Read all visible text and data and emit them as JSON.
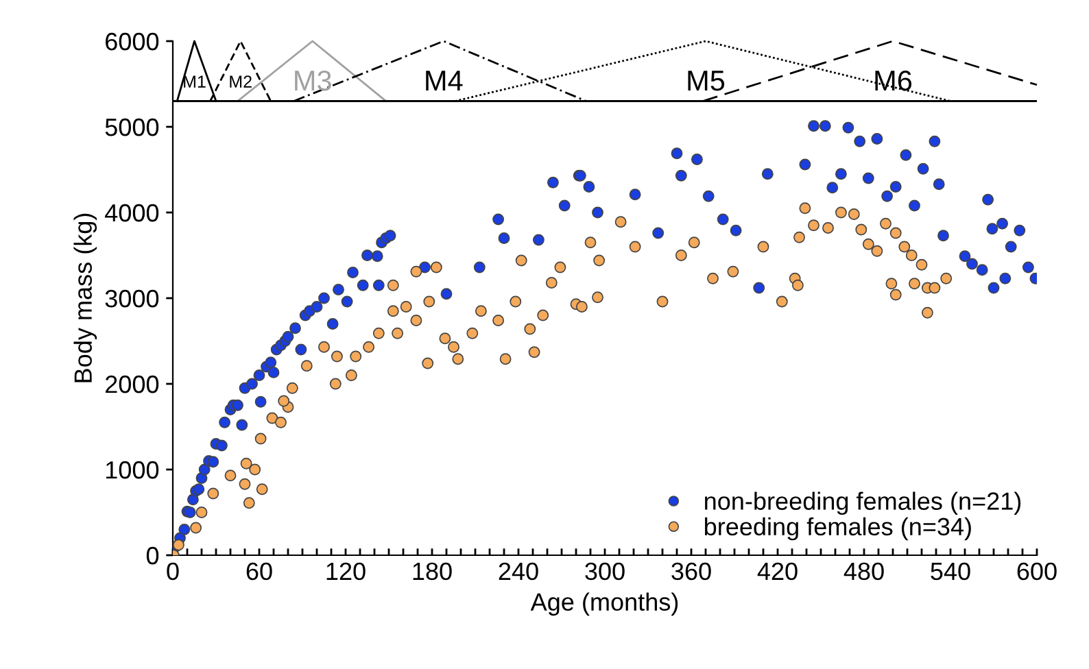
{
  "chart_data": {
    "type": "scatter",
    "xlabel": "Age (months)",
    "ylabel": "Body mass (kg)",
    "xlim": [
      0,
      600
    ],
    "ylim": [
      0,
      6000
    ],
    "xticks": [
      0,
      {
        "value": 10,
        "label": null
      },
      {
        "value": 20,
        "label": null
      },
      {
        "value": 30,
        "label": null
      },
      {
        "value": 40,
        "label": null
      },
      {
        "value": 50,
        "label": null
      },
      60,
      {
        "value": 70,
        "label": null
      },
      {
        "value": 80,
        "label": null
      },
      {
        "value": 90,
        "label": null
      },
      {
        "value": 100,
        "label": null
      },
      {
        "value": 110,
        "label": null
      },
      120,
      {
        "value": 130,
        "label": null
      },
      {
        "value": 140,
        "label": null
      },
      {
        "value": 150,
        "label": null
      },
      {
        "value": 160,
        "label": null
      },
      {
        "value": 170,
        "label": null
      },
      180,
      {
        "value": 190,
        "label": null
      },
      {
        "value": 200,
        "label": null
      },
      {
        "value": 210,
        "label": null
      },
      {
        "value": 220,
        "label": null
      },
      {
        "value": 230,
        "label": null
      },
      240,
      {
        "value": 250,
        "label": null
      },
      {
        "value": 260,
        "label": null
      },
      {
        "value": 270,
        "label": null
      },
      {
        "value": 280,
        "label": null
      },
      {
        "value": 290,
        "label": null
      },
      300,
      {
        "value": 310,
        "label": null
      },
      {
        "value": 320,
        "label": null
      },
      {
        "value": 330,
        "label": null
      },
      {
        "value": 340,
        "label": null
      },
      {
        "value": 350,
        "label": null
      },
      360,
      {
        "value": 370,
        "label": null
      },
      {
        "value": 380,
        "label": null
      },
      {
        "value": 390,
        "label": null
      },
      {
        "value": 400,
        "label": null
      },
      {
        "value": 410,
        "label": null
      },
      420,
      {
        "value": 430,
        "label": null
      },
      {
        "value": 440,
        "label": null
      },
      {
        "value": 450,
        "label": null
      },
      {
        "value": 460,
        "label": null
      },
      {
        "value": 470,
        "label": null
      },
      480,
      {
        "value": 490,
        "label": null
      },
      {
        "value": 500,
        "label": null
      },
      {
        "value": 510,
        "label": null
      },
      {
        "value": 520,
        "label": null
      },
      {
        "value": 530,
        "label": null
      },
      540,
      {
        "value": 550,
        "label": null
      },
      {
        "value": 560,
        "label": null
      },
      {
        "value": 570,
        "label": null
      },
      {
        "value": 580,
        "label": null
      },
      {
        "value": 590,
        "label": null
      },
      600
    ],
    "yticks": [
      0,
      1000,
      2000,
      3000,
      4000,
      5000,
      6000
    ],
    "ref_lines": [
      {
        "axis": "y",
        "value": 5300,
        "color": "#000000",
        "line_style": "solid"
      }
    ],
    "grid": false,
    "legend": "bottom right",
    "marker": "circle",
    "series": [
      {
        "name": "non-breeding females (n=21)",
        "color": "#1a3ee0",
        "x": [
          2,
          5,
          8,
          10,
          12,
          14,
          16,
          18,
          20,
          22,
          25,
          28,
          30,
          34,
          36,
          40,
          42,
          45,
          48,
          50,
          55,
          60,
          61,
          65,
          68,
          70,
          72,
          75,
          78,
          80,
          85,
          89,
          92,
          95,
          100,
          105,
          111,
          115,
          121,
          125,
          132,
          135,
          142,
          145,
          148,
          151,
          143,
          175,
          190,
          213,
          226,
          230,
          254,
          264,
          272,
          282,
          283,
          289,
          295,
          321,
          337,
          350,
          353,
          364,
          372,
          382,
          391,
          407,
          413,
          439,
          445,
          453,
          458,
          464,
          469,
          477,
          483,
          489,
          496,
          502,
          509,
          515,
          521,
          529,
          532,
          535,
          550,
          555,
          562,
          566,
          569,
          570,
          576,
          578,
          582,
          588,
          594,
          599
        ],
        "values": [
          100,
          200,
          300,
          510,
          500,
          650,
          750,
          770,
          900,
          1000,
          1100,
          1090,
          1300,
          1280,
          1550,
          1700,
          1750,
          1750,
          1520,
          1950,
          2000,
          2100,
          1790,
          2200,
          2250,
          2133,
          2400,
          2450,
          2500,
          2550,
          2650,
          2400,
          2800,
          2850,
          2900,
          3000,
          2700,
          3100,
          2960,
          3300,
          3150,
          3500,
          3490,
          3650,
          3700,
          3730,
          3150,
          3360,
          3050,
          3360,
          3920,
          3700,
          3680,
          4350,
          4080,
          4430,
          4430,
          4300,
          4000,
          4210,
          3760,
          4690,
          4430,
          4620,
          4190,
          3920,
          3790,
          3120,
          4450,
          4560,
          5010,
          5010,
          4290,
          4450,
          4990,
          4830,
          4400,
          4860,
          4190,
          4300,
          4670,
          4080,
          4510,
          4830,
          4330,
          3730,
          3490,
          3400,
          3330,
          4150,
          3810,
          3120,
          3870,
          3230,
          3600,
          3790,
          3360,
          3230
        ]
      },
      {
        "name": "breeding females (n=34)",
        "color": "#f5a95a",
        "x": [
          0.6,
          4,
          16,
          20,
          28,
          40,
          51,
          57,
          53,
          62,
          50,
          61,
          69,
          75,
          80,
          77,
          83,
          93,
          105,
          114,
          113,
          124,
          127,
          136,
          143,
          153,
          153,
          162,
          169,
          156,
          169,
          183,
          178,
          177,
          189,
          195,
          198,
          208,
          214,
          226,
          231,
          238,
          242,
          248,
          251,
          257,
          263,
          269,
          280,
          284,
          290,
          295,
          296,
          311,
          321,
          340,
          353,
          362,
          375,
          389,
          410,
          423,
          432,
          434,
          435,
          439,
          445,
          455,
          464,
          473,
          478,
          483,
          489,
          495,
          499,
          502,
          502,
          508,
          513,
          515,
          520,
          524,
          524,
          529,
          537
        ],
        "values": [
          0,
          120,
          320,
          500,
          720,
          930,
          1070,
          1000,
          610,
          770,
          830,
          1360,
          1600,
          1550,
          1730,
          1800,
          1950,
          2210,
          2430,
          2320,
          2000,
          2100,
          2320,
          2430,
          2590,
          2850,
          3150,
          2900,
          2740,
          2590,
          3310,
          3360,
          2960,
          2240,
          2530,
          2430,
          2290,
          2590,
          2850,
          2740,
          2290,
          2960,
          3440,
          2640,
          2370,
          2800,
          3180,
          3360,
          2930,
          2900,
          3650,
          3010,
          3440,
          3890,
          3600,
          2960,
          3500,
          3650,
          3230,
          3310,
          3600,
          2960,
          3230,
          3150,
          3710,
          4050,
          3850,
          3820,
          4000,
          3980,
          3800,
          3630,
          3550,
          3870,
          3170,
          3760,
          3040,
          3600,
          3500,
          3170,
          3390,
          3120,
          2830,
          3120,
          3230
        ]
      },
      {
        "name": "M1",
        "type": "line",
        "marker": "none",
        "line_style": "solid",
        "color": "#000000",
        "x": [
          3,
          15,
          30
        ],
        "values": [
          5300,
          6000,
          5300
        ]
      },
      {
        "name": "M2",
        "type": "line",
        "marker": "none",
        "line_style": "dashed",
        "color": "#000000",
        "x": [
          26,
          47,
          68
        ],
        "values": [
          5300,
          6000,
          5300
        ]
      },
      {
        "name": "M3",
        "type": "line",
        "marker": "none",
        "line_style": "solid",
        "color": "#a0a0a0",
        "x": [
          45,
          97,
          148
        ],
        "values": [
          5300,
          6000,
          5300
        ]
      },
      {
        "name": "M4",
        "type": "line",
        "marker": "none",
        "line_style": "dashdot",
        "color": "#000000",
        "x": [
          84,
          188,
          287
        ],
        "values": [
          5300,
          6000,
          5300
        ]
      },
      {
        "name": "M5",
        "type": "line",
        "marker": "none",
        "line_style": "dotted",
        "color": "#000000",
        "x": [
          196,
          370,
          540
        ],
        "values": [
          5300,
          6000,
          5300
        ]
      },
      {
        "name": "M6",
        "type": "line",
        "marker": "none",
        "line_style": "longdash",
        "color": "#000000",
        "x": [
          368,
          500,
          600
        ],
        "values": [
          5300,
          6000,
          5490
        ]
      }
    ]
  }
}
